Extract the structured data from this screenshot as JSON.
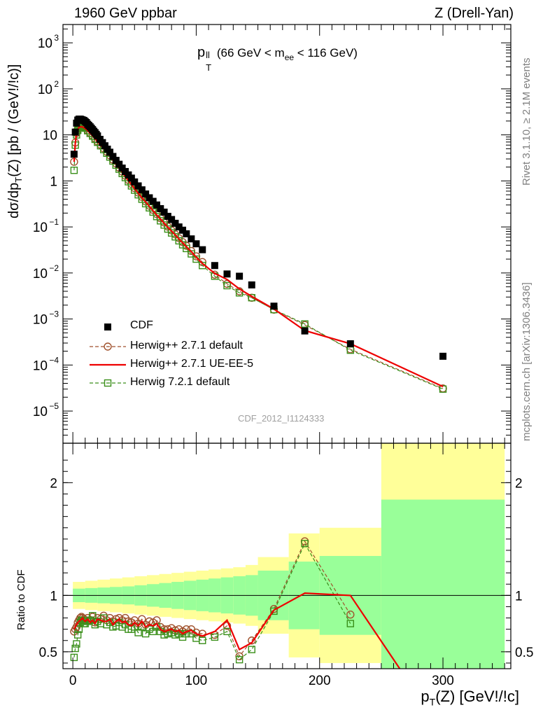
{
  "header": {
    "left": "1960 GeV ppbar",
    "right": "Z (Drell-Yan)"
  },
  "side_labels": {
    "rivet": "Rivet 3.1.10, ≥ 2.1M events",
    "mcplots": "mcplots.cern.ch [arXiv:1306.3436]"
  },
  "chart_data": [
    {
      "type": "scatter",
      "panel": "main",
      "title_main": "p",
      "title_sup": "ll",
      "title_sub": "T",
      "title_rest_a": " (66 GeV < m",
      "title_sub2": "ee",
      "title_rest_b": " < 116 GeV)",
      "ylabel": "dσ/dp",
      "ylabel_sub": "T",
      "ylabel_rest": "(Z) [pb / (GeV!/!c)]",
      "yscale": "log",
      "ylim": [
        2e-06,
        2500
      ],
      "xlim": [
        -8,
        355
      ],
      "y_ticks": [
        {
          "v": 1000.0,
          "text": "10",
          "exp": "3"
        },
        {
          "v": 100.0,
          "text": "10",
          "exp": "2"
        },
        {
          "v": 10,
          "text": "10",
          "exp": ""
        },
        {
          "v": 1,
          "text": "1",
          "exp": ""
        },
        {
          "v": 0.1,
          "text": "10",
          "exp": "−1"
        },
        {
          "v": 0.01,
          "text": "10",
          "exp": "−2"
        },
        {
          "v": 0.001,
          "text": "10",
          "exp": "−3"
        },
        {
          "v": 0.0001,
          "text": "10",
          "exp": "−4"
        },
        {
          "v": 1e-05,
          "text": "10",
          "exp": "−5"
        }
      ],
      "watermark": "CDF_2012_I1124333",
      "legend_position": "bottom-left",
      "series": [
        {
          "name": "CDF",
          "color": "#000000",
          "marker": "filled-square",
          "x": [
            1,
            2,
            3,
            4,
            5,
            6,
            7,
            8,
            9,
            10,
            11,
            12,
            13,
            14,
            15,
            16,
            17,
            18,
            19,
            20,
            22,
            24,
            26,
            28,
            30,
            32.5,
            35,
            37.5,
            40,
            42.5,
            45,
            47.5,
            50,
            53,
            56,
            59,
            62,
            65,
            68,
            71,
            74,
            77,
            80,
            83,
            86,
            89,
            92,
            96,
            100,
            105,
            115,
            125,
            135,
            145,
            163,
            188,
            225,
            300
          ],
          "y": [
            3.8,
            11.5,
            18,
            21,
            22,
            22,
            21.5,
            21,
            20.5,
            19.5,
            18.5,
            17,
            16,
            15,
            14,
            13,
            12,
            11.2,
            10.3,
            9.5,
            8.0,
            6.8,
            5.8,
            4.9,
            4.2,
            3.4,
            2.8,
            2.3,
            1.9,
            1.6,
            1.35,
            1.15,
            0.95,
            0.78,
            0.64,
            0.52,
            0.43,
            0.36,
            0.3,
            0.25,
            0.21,
            0.17,
            0.145,
            0.12,
            0.1,
            0.085,
            0.071,
            0.055,
            0.043,
            0.032,
            0.0145,
            0.0095,
            0.0085,
            0.0055,
            0.0019,
            0.00055,
            0.00029,
            0.000155
          ]
        },
        {
          "name": "Herwig++ 2.7.1 default",
          "color": "#a0522d",
          "marker": "open-circle",
          "dashed": true,
          "x": [
            1,
            2,
            3,
            4,
            5,
            6,
            7,
            8,
            9,
            10,
            12,
            14,
            16,
            18,
            20,
            22.5,
            25,
            27.5,
            30,
            32.5,
            35,
            37.5,
            40,
            42.5,
            45,
            47.5,
            50,
            53,
            56,
            59,
            62,
            65,
            68,
            71,
            74,
            77,
            80,
            83,
            86,
            89,
            92,
            96,
            100,
            105,
            115,
            125,
            135,
            145,
            163,
            188,
            225,
            300
          ],
          "y": [
            2.6,
            6.8,
            11,
            13.5,
            15,
            15.5,
            15.5,
            15,
            14.5,
            14,
            12.5,
            11,
            9.6,
            8.3,
            7.2,
            6.1,
            5.1,
            4.3,
            3.6,
            2.9,
            2.4,
            1.95,
            1.6,
            1.3,
            1.05,
            0.86,
            0.7,
            0.56,
            0.45,
            0.36,
            0.29,
            0.235,
            0.19,
            0.155,
            0.125,
            0.102,
            0.084,
            0.069,
            0.057,
            0.047,
            0.039,
            0.03,
            0.023,
            0.0173,
            0.0092,
            0.0058,
            0.004,
            0.0029,
            0.0016,
            0.00074,
            0.00022,
            3.1e-05
          ]
        },
        {
          "name": "Herwig++ 2.7.1 UE-EE-5",
          "color": "#ee0000",
          "marker": "none",
          "x": [
            1,
            2,
            3,
            4,
            5,
            6,
            7,
            8,
            9,
            10,
            12,
            14,
            16,
            18,
            20,
            22.5,
            25,
            27.5,
            30,
            32.5,
            35,
            37.5,
            40,
            42.5,
            45,
            47.5,
            50,
            53,
            56,
            59,
            62,
            65,
            68,
            71,
            74,
            77,
            80,
            83,
            86,
            89,
            92,
            96,
            100,
            105,
            115,
            125,
            135,
            145,
            163,
            188,
            225,
            300
          ],
          "y": [
            2.6,
            6.5,
            10.5,
            13,
            14.5,
            15,
            15,
            14.8,
            14.3,
            13.8,
            12.3,
            10.8,
            9.5,
            8.2,
            7.1,
            6.0,
            5.0,
            4.2,
            3.5,
            2.8,
            2.3,
            1.9,
            1.55,
            1.25,
            1.02,
            0.83,
            0.68,
            0.54,
            0.43,
            0.35,
            0.28,
            0.225,
            0.18,
            0.148,
            0.12,
            0.098,
            0.081,
            0.067,
            0.055,
            0.045,
            0.037,
            0.029,
            0.022,
            0.016,
            0.0098,
            0.0072,
            0.0045,
            0.0031,
            0.00165,
            0.00056,
            0.00029,
            3.4e-05
          ]
        },
        {
          "name": "Herwig 7.2.1 default",
          "color": "#3a8f1a",
          "marker": "open-square",
          "dashed": true,
          "x": [
            1,
            2,
            3,
            4,
            5,
            6,
            7,
            8,
            9,
            10,
            12,
            14,
            16,
            18,
            20,
            22.5,
            25,
            27.5,
            30,
            32.5,
            35,
            37.5,
            40,
            42.5,
            45,
            47.5,
            50,
            53,
            56,
            59,
            62,
            65,
            68,
            71,
            74,
            77,
            80,
            83,
            86,
            89,
            92,
            96,
            100,
            105,
            115,
            125,
            135,
            145,
            163,
            188,
            225,
            300
          ],
          "y": [
            1.7,
            6.0,
            10,
            12.5,
            14.5,
            15.5,
            15.5,
            15,
            14.5,
            14,
            12.3,
            10.8,
            9.4,
            8.0,
            6.9,
            5.8,
            4.8,
            4.0,
            3.3,
            2.7,
            2.2,
            1.8,
            1.45,
            1.18,
            0.96,
            0.78,
            0.63,
            0.5,
            0.4,
            0.32,
            0.26,
            0.21,
            0.168,
            0.136,
            0.11,
            0.09,
            0.074,
            0.061,
            0.05,
            0.041,
            0.034,
            0.026,
            0.02,
            0.0145,
            0.0085,
            0.0053,
            0.0037,
            0.0029,
            0.0016,
            0.00078,
            0.00021,
            3e-05
          ]
        }
      ]
    },
    {
      "type": "line",
      "panel": "ratio",
      "ylabel": "Ratio to CDF",
      "xlabel": "p",
      "xlabel_sub": "T",
      "xlabel_rest": "(Z) [GeV!/!c]",
      "ylim": [
        0.35,
        2.35
      ],
      "xlim": [
        -8,
        355
      ],
      "x_ticks": [
        0,
        100,
        200,
        300
      ],
      "y_ticks": [
        0.5,
        1,
        2
      ],
      "reference": 1,
      "bands": [
        {
          "x0": 0,
          "x1": 10,
          "stat": 0.06,
          "tot": 0.12
        },
        {
          "x0": 10,
          "x1": 20,
          "stat": 0.065,
          "tot": 0.13
        },
        {
          "x0": 20,
          "x1": 30,
          "stat": 0.07,
          "tot": 0.14
        },
        {
          "x0": 30,
          "x1": 40,
          "stat": 0.075,
          "tot": 0.15
        },
        {
          "x0": 40,
          "x1": 50,
          "stat": 0.08,
          "tot": 0.16
        },
        {
          "x0": 50,
          "x1": 60,
          "stat": 0.09,
          "tot": 0.17
        },
        {
          "x0": 60,
          "x1": 70,
          "stat": 0.1,
          "tot": 0.18
        },
        {
          "x0": 70,
          "x1": 80,
          "stat": 0.11,
          "tot": 0.19
        },
        {
          "x0": 80,
          "x1": 90,
          "stat": 0.12,
          "tot": 0.2
        },
        {
          "x0": 90,
          "x1": 100,
          "stat": 0.13,
          "tot": 0.21
        },
        {
          "x0": 100,
          "x1": 110,
          "stat": 0.14,
          "tot": 0.22
        },
        {
          "x0": 110,
          "x1": 120,
          "stat": 0.15,
          "tot": 0.23
        },
        {
          "x0": 120,
          "x1": 130,
          "stat": 0.16,
          "tot": 0.24
        },
        {
          "x0": 130,
          "x1": 140,
          "stat": 0.17,
          "tot": 0.25
        },
        {
          "x0": 140,
          "x1": 150,
          "stat": 0.18,
          "tot": 0.27
        },
        {
          "x0": 150,
          "x1": 175,
          "stat": 0.22,
          "tot": 0.34
        },
        {
          "x0": 175,
          "x1": 200,
          "stat": 0.3,
          "tot": 0.55
        },
        {
          "x0": 200,
          "x1": 250,
          "stat": 0.35,
          "tot": 0.6
        },
        {
          "x0": 250,
          "x1": 350,
          "stat": 0.85,
          "tot": 1.5
        }
      ],
      "series": [
        {
          "name": "Herwig++ 2.7.1 default",
          "color": "#a0522d",
          "marker": "open-circle",
          "dashed": true,
          "x": [
            1,
            2,
            3,
            4,
            5,
            6,
            7,
            8,
            9,
            10,
            12,
            14,
            16,
            18,
            20,
            22.5,
            25,
            27.5,
            30,
            32.5,
            35,
            37.5,
            40,
            42.5,
            45,
            47.5,
            50,
            53,
            56,
            59,
            62,
            65,
            68,
            71,
            74,
            77,
            80,
            83,
            86,
            89,
            92,
            96,
            100,
            105,
            115,
            125,
            135,
            145,
            163,
            188,
            225
          ],
          "y": [
            0.68,
            0.7,
            0.72,
            0.76,
            0.78,
            0.8,
            0.81,
            0.8,
            0.79,
            0.78,
            0.8,
            0.78,
            0.81,
            0.76,
            0.8,
            0.79,
            0.82,
            0.78,
            0.8,
            0.77,
            0.79,
            0.8,
            0.78,
            0.8,
            0.77,
            0.76,
            0.78,
            0.75,
            0.79,
            0.74,
            0.77,
            0.76,
            0.78,
            0.72,
            0.7,
            0.7,
            0.71,
            0.69,
            0.7,
            0.68,
            0.7,
            0.7,
            0.67,
            0.66,
            0.65,
            0.73,
            0.46,
            0.6,
            0.88,
            1.48,
            0.83
          ]
        },
        {
          "name": "Herwig++ 2.7.1 UE-EE-5",
          "color": "#ee0000",
          "marker": "none",
          "x": [
            1,
            2,
            3,
            4,
            5,
            6,
            7,
            8,
            9,
            10,
            12,
            14,
            16,
            18,
            20,
            22.5,
            25,
            27.5,
            30,
            32.5,
            35,
            37.5,
            40,
            42.5,
            45,
            47.5,
            50,
            53,
            56,
            59,
            62,
            65,
            68,
            71,
            74,
            77,
            80,
            83,
            86,
            89,
            92,
            96,
            100,
            105,
            115,
            125,
            135,
            145,
            163,
            188,
            225,
            265
          ],
          "y": [
            0.7,
            0.72,
            0.74,
            0.76,
            0.77,
            0.78,
            0.79,
            0.8,
            0.78,
            0.77,
            0.79,
            0.76,
            0.78,
            0.75,
            0.79,
            0.78,
            0.77,
            0.77,
            0.79,
            0.74,
            0.77,
            0.79,
            0.76,
            0.77,
            0.74,
            0.73,
            0.76,
            0.73,
            0.77,
            0.72,
            0.74,
            0.73,
            0.75,
            0.7,
            0.68,
            0.69,
            0.7,
            0.68,
            0.69,
            0.66,
            0.68,
            0.69,
            0.66,
            0.64,
            0.68,
            0.78,
            0.52,
            0.58,
            0.87,
            1.02,
            1.0,
            0.35
          ]
        },
        {
          "name": "Herwig 7.2.1 default",
          "color": "#3a8f1a",
          "marker": "open-square",
          "dashed": true,
          "x": [
            1,
            2,
            3,
            4,
            5,
            6,
            7,
            8,
            9,
            10,
            12,
            14,
            16,
            18,
            20,
            22.5,
            25,
            27.5,
            30,
            32.5,
            35,
            37.5,
            40,
            42.5,
            45,
            47.5,
            50,
            53,
            56,
            59,
            62,
            65,
            68,
            71,
            74,
            77,
            80,
            83,
            86,
            89,
            92,
            96,
            100,
            105,
            115,
            125,
            135,
            145,
            163,
            188,
            225
          ],
          "y": [
            0.45,
            0.53,
            0.57,
            0.65,
            0.7,
            0.76,
            0.78,
            0.77,
            0.75,
            0.75,
            0.77,
            0.78,
            0.82,
            0.74,
            0.77,
            0.75,
            0.8,
            0.74,
            0.76,
            0.72,
            0.73,
            0.76,
            0.72,
            0.74,
            0.7,
            0.7,
            0.72,
            0.67,
            0.72,
            0.66,
            0.7,
            0.68,
            0.72,
            0.68,
            0.65,
            0.66,
            0.67,
            0.65,
            0.66,
            0.63,
            0.66,
            0.66,
            0.62,
            0.6,
            0.63,
            0.68,
            0.43,
            0.52,
            0.86,
            1.46,
            0.75
          ]
        }
      ]
    }
  ]
}
